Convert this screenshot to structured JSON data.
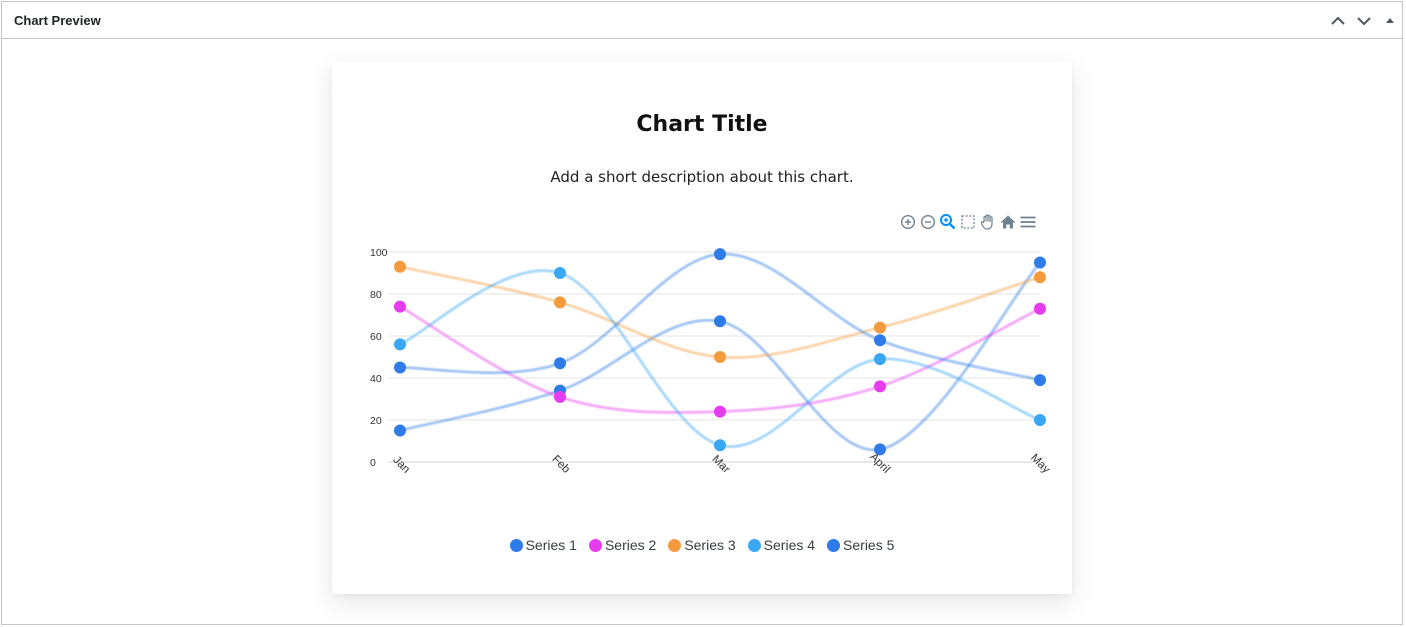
{
  "panel": {
    "title": "Chart Preview",
    "controls": [
      "chevron-up-icon",
      "chevron-down-icon",
      "triangle-up-icon"
    ]
  },
  "chart_data": {
    "type": "line",
    "curve": "smooth",
    "title": "Chart Title",
    "subtitle": "Add a short description about this chart.",
    "categories": [
      "Jan",
      "Feb",
      "Mar",
      "April",
      "May"
    ],
    "ylim": [
      0,
      100
    ],
    "yticks": [
      0,
      20,
      40,
      60,
      80,
      100
    ],
    "grid": true,
    "legend_position": "bottom",
    "toolbar": [
      "zoom-in-icon",
      "zoom-out-icon",
      "magnifier-icon",
      "selection-icon",
      "pan-hand-icon",
      "home-icon",
      "menu-icon"
    ],
    "series": [
      {
        "name": "Series 1",
        "color": "#2f7be8",
        "values": [
          15,
          34,
          67,
          6,
          95
        ]
      },
      {
        "name": "Series 2",
        "color": "#e63cf0",
        "values": [
          74,
          31,
          24,
          36,
          73
        ]
      },
      {
        "name": "Series 3",
        "color": "#f59a3d",
        "values": [
          93,
          76,
          50,
          64,
          88
        ]
      },
      {
        "name": "Series 4",
        "color": "#3aa7f5",
        "values": [
          56,
          90,
          8,
          49,
          20
        ]
      },
      {
        "name": "Series 5",
        "color": "#2f7be8",
        "values": [
          45,
          47,
          99,
          58,
          39
        ]
      }
    ]
  }
}
